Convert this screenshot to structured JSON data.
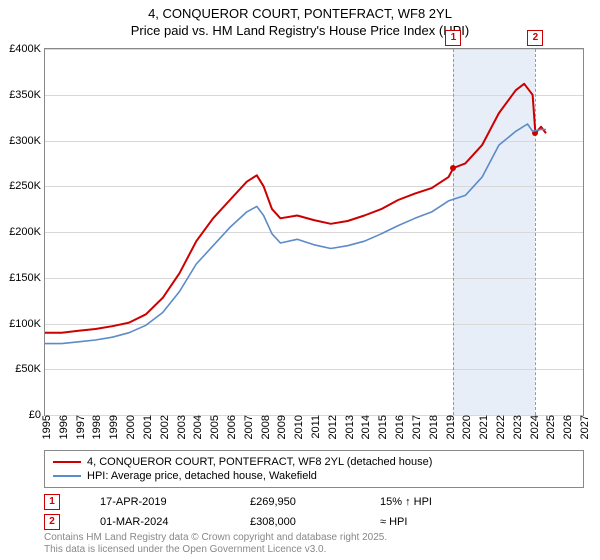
{
  "title_line1": "4, CONQUEROR COURT, PONTEFRACT, WF8 2YL",
  "title_line2": "Price paid vs. HM Land Registry's House Price Index (HPI)",
  "chart": {
    "type": "line",
    "x_min": 1995,
    "x_max": 2027,
    "y_min": 0,
    "y_max": 400000,
    "y_tick_step": 50000,
    "y_tick_labels": [
      "£0",
      "£50K",
      "£100K",
      "£150K",
      "£200K",
      "£250K",
      "£300K",
      "£350K",
      "£400K"
    ],
    "x_ticks": [
      1995,
      1996,
      1997,
      1998,
      1999,
      2000,
      2001,
      2002,
      2003,
      2004,
      2005,
      2006,
      2007,
      2008,
      2009,
      2010,
      2011,
      2012,
      2013,
      2014,
      2015,
      2016,
      2017,
      2018,
      2019,
      2020,
      2021,
      2022,
      2023,
      2024,
      2025,
      2026,
      2027
    ],
    "grid_color": "#d8d8d8",
    "shade_color": "#e8eef7",
    "shade_from": 2019.29,
    "shade_to": 2024.17,
    "series": [
      {
        "name": "4, CONQUEROR COURT, PONTEFRACT, WF8 2YL (detached house)",
        "color": "#cc0000",
        "width": 2,
        "data": [
          [
            1995,
            90000
          ],
          [
            1996,
            90000
          ],
          [
            1997,
            92000
          ],
          [
            1998,
            94000
          ],
          [
            1999,
            97000
          ],
          [
            2000,
            101000
          ],
          [
            2001,
            110000
          ],
          [
            2002,
            128000
          ],
          [
            2003,
            155000
          ],
          [
            2004,
            190000
          ],
          [
            2005,
            215000
          ],
          [
            2006,
            235000
          ],
          [
            2007,
            255000
          ],
          [
            2007.6,
            262000
          ],
          [
            2008,
            250000
          ],
          [
            2008.5,
            225000
          ],
          [
            2009,
            215000
          ],
          [
            2010,
            218000
          ],
          [
            2011,
            213000
          ],
          [
            2012,
            209000
          ],
          [
            2013,
            212000
          ],
          [
            2014,
            218000
          ],
          [
            2015,
            225000
          ],
          [
            2016,
            235000
          ],
          [
            2017,
            242000
          ],
          [
            2018,
            248000
          ],
          [
            2019,
            260000
          ],
          [
            2019.29,
            269950
          ],
          [
            2020,
            275000
          ],
          [
            2021,
            295000
          ],
          [
            2022,
            330000
          ],
          [
            2023,
            355000
          ],
          [
            2023.5,
            362000
          ],
          [
            2024,
            350000
          ],
          [
            2024.17,
            308000
          ],
          [
            2024.5,
            315000
          ],
          [
            2024.8,
            308000
          ]
        ]
      },
      {
        "name": "HPI: Average price, detached house, Wakefield",
        "color": "#5b8bc9",
        "width": 1.6,
        "data": [
          [
            1995,
            78000
          ],
          [
            1996,
            78000
          ],
          [
            1997,
            80000
          ],
          [
            1998,
            82000
          ],
          [
            1999,
            85000
          ],
          [
            2000,
            90000
          ],
          [
            2001,
            98000
          ],
          [
            2002,
            112000
          ],
          [
            2003,
            135000
          ],
          [
            2004,
            165000
          ],
          [
            2005,
            185000
          ],
          [
            2006,
            205000
          ],
          [
            2007,
            222000
          ],
          [
            2007.6,
            228000
          ],
          [
            2008,
            218000
          ],
          [
            2008.5,
            198000
          ],
          [
            2009,
            188000
          ],
          [
            2010,
            192000
          ],
          [
            2011,
            186000
          ],
          [
            2012,
            182000
          ],
          [
            2013,
            185000
          ],
          [
            2014,
            190000
          ],
          [
            2015,
            198000
          ],
          [
            2016,
            207000
          ],
          [
            2017,
            215000
          ],
          [
            2018,
            222000
          ],
          [
            2019,
            234000
          ],
          [
            2020,
            240000
          ],
          [
            2021,
            260000
          ],
          [
            2022,
            295000
          ],
          [
            2023,
            310000
          ],
          [
            2023.7,
            318000
          ],
          [
            2024,
            310000
          ],
          [
            2024.5,
            312000
          ],
          [
            2024.8,
            312000
          ]
        ]
      }
    ],
    "markers": [
      {
        "n": "1",
        "x": 2019.29,
        "y": 269950,
        "color": "#cc0000"
      },
      {
        "n": "2",
        "x": 2024.17,
        "y": 308000,
        "color": "#cc0000"
      }
    ]
  },
  "legend": {
    "items": [
      {
        "color": "#cc0000",
        "label": "4, CONQUEROR COURT, PONTEFRACT, WF8 2YL (detached house)"
      },
      {
        "color": "#5b8bc9",
        "label": "HPI: Average price, detached house, Wakefield"
      }
    ]
  },
  "info_rows": [
    {
      "n": "1",
      "date": "17-APR-2019",
      "price": "£269,950",
      "note": "15% ↑ HPI"
    },
    {
      "n": "2",
      "date": "01-MAR-2024",
      "price": "£308,000",
      "note": "≈ HPI"
    }
  ],
  "credits_line1": "Contains HM Land Registry data © Crown copyright and database right 2025.",
  "credits_line2": "This data is licensed under the Open Government Licence v3.0."
}
